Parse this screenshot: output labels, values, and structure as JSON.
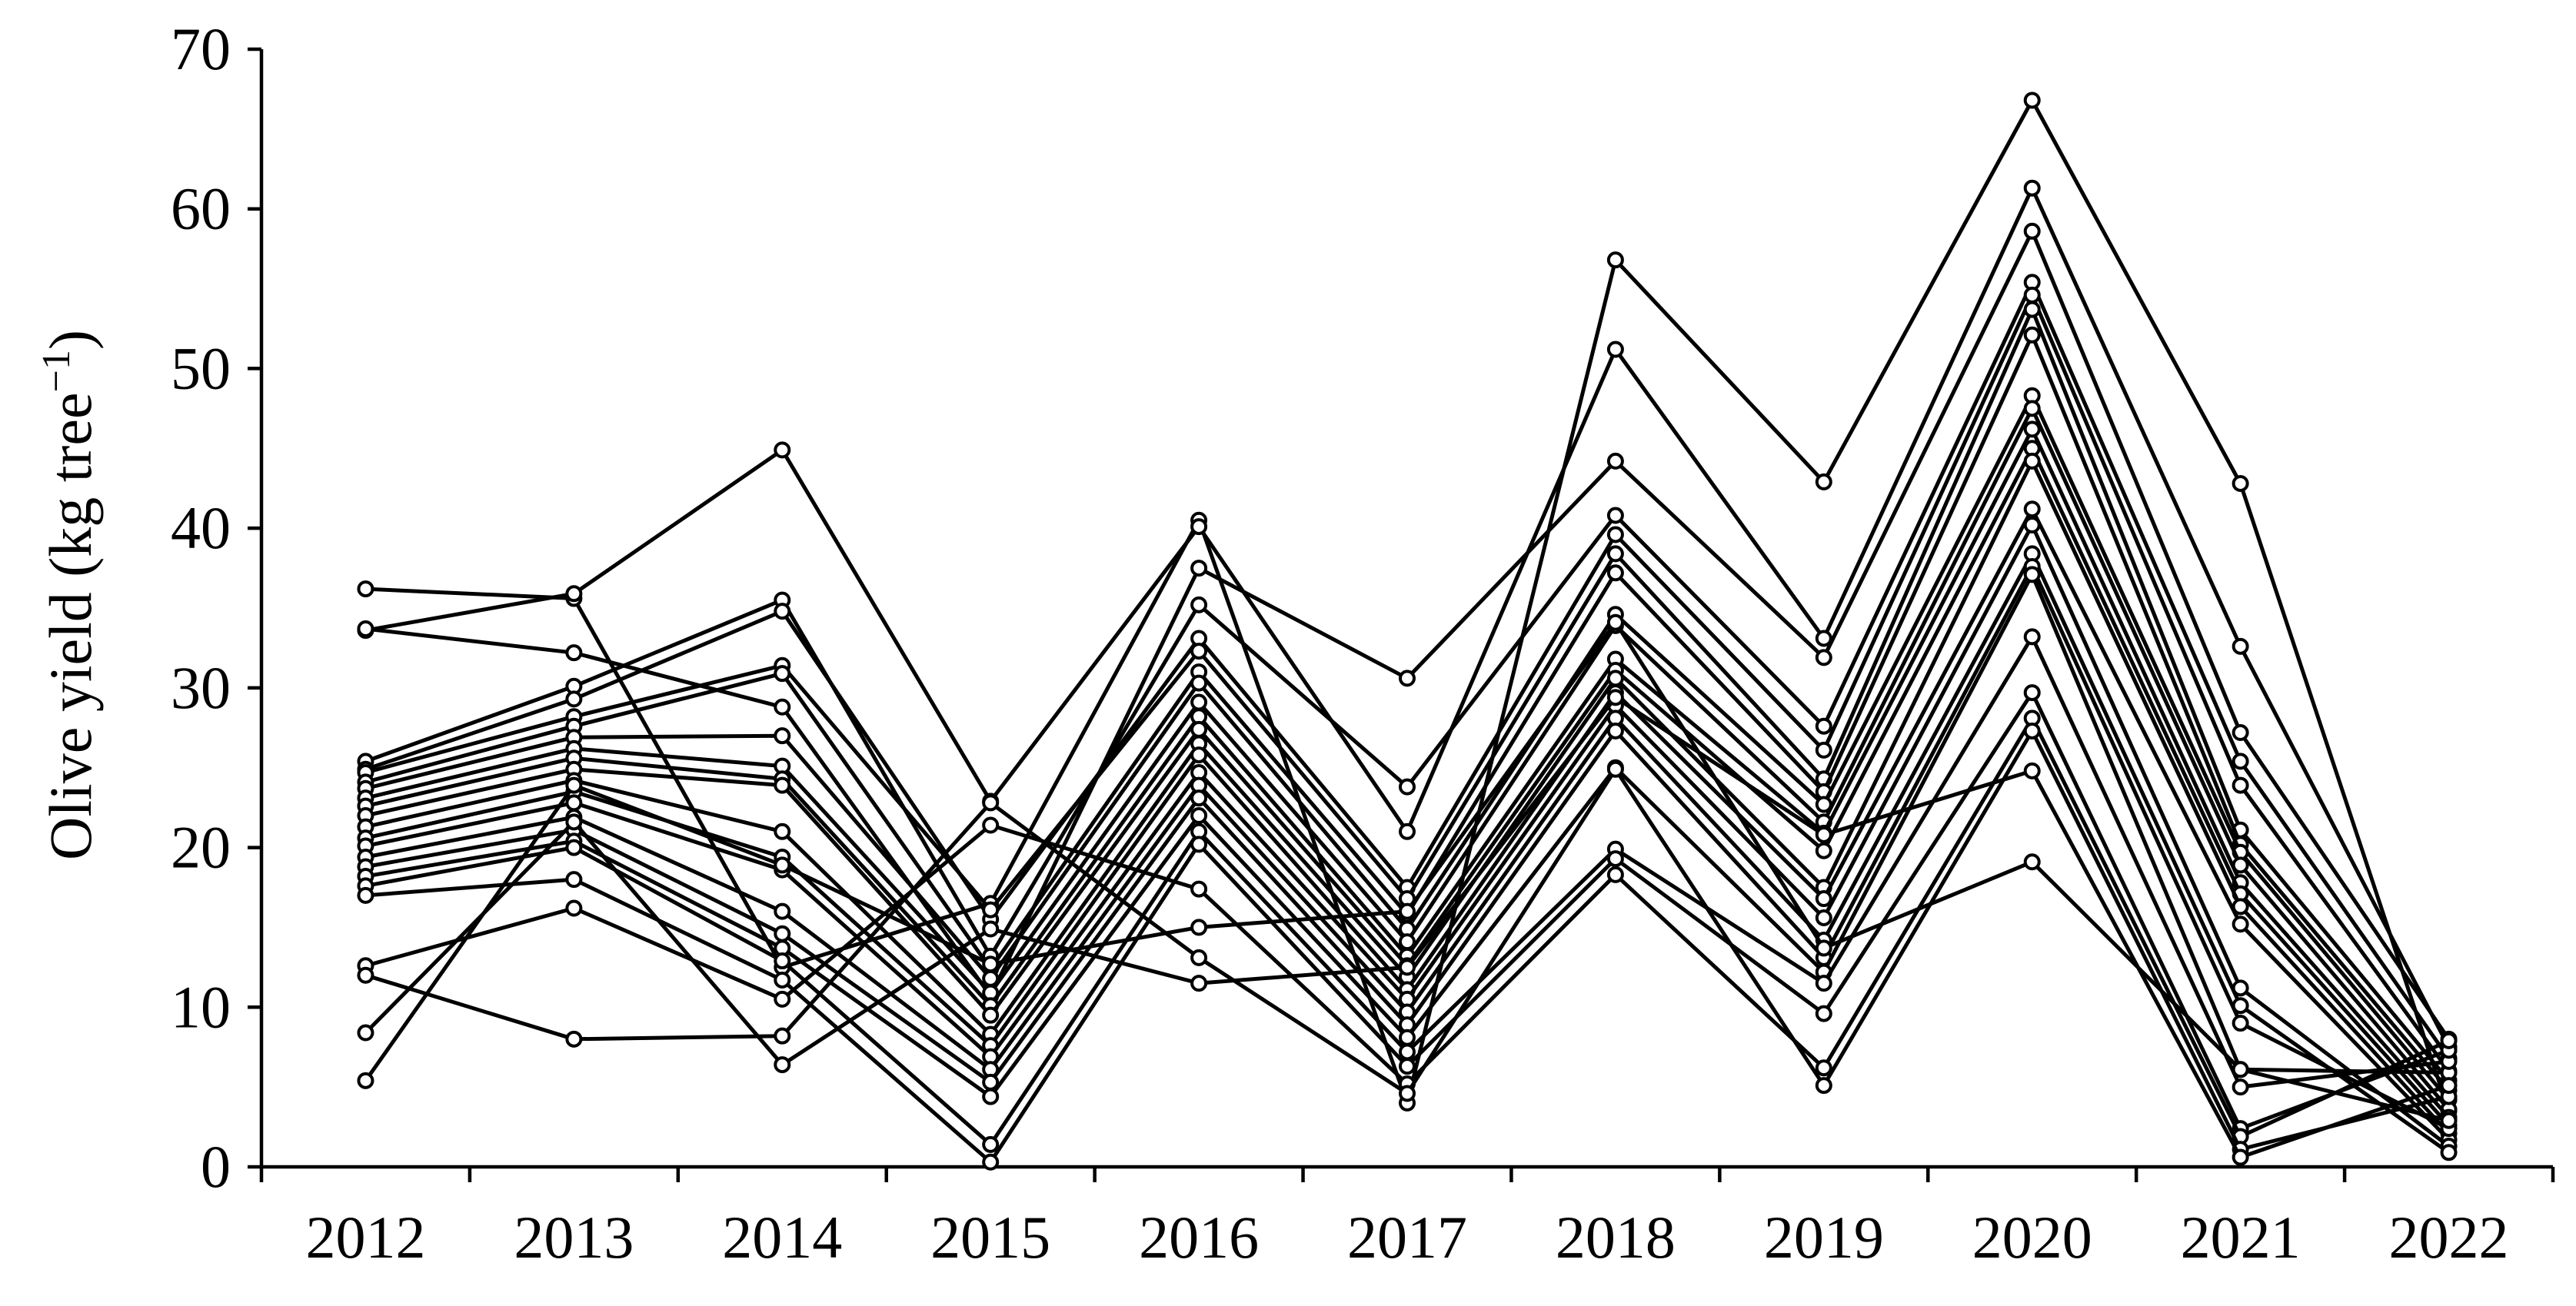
{
  "chart_data": {
    "type": "line",
    "title": "",
    "xlabel": "",
    "ylabel": "Olive yield (kg tree",
    "ylabel_superscript": "−1",
    "ylabel_suffix": ")",
    "ylim": [
      0,
      70
    ],
    "yticks": [
      "0",
      "10",
      "20",
      "30",
      "40",
      "50",
      "60",
      "70"
    ],
    "categories": [
      "2012",
      "2013",
      "2014",
      "2015",
      "2016",
      "2017",
      "2018",
      "2019",
      "2020",
      "2021",
      "2022"
    ],
    "grid": false,
    "legend": "none",
    "line_color": "#000000",
    "marker_fill": "#ffffff",
    "series": [
      {
        "values": [
          36.2,
          35.6,
          12.5,
          16.5,
          40.5,
          4.0,
          56.8,
          42.9,
          66.8,
          42.8,
          3.5
        ]
      },
      {
        "values": [
          33.6,
          35.9,
          44.9,
          22.9,
          40.1,
          21.0,
          51.2,
          33.1,
          61.3,
          32.6,
          7.5
        ]
      },
      {
        "values": [
          33.7,
          32.2,
          28.8,
          10.7,
          37.5,
          30.6,
          44.2,
          31.9,
          58.6,
          27.2,
          8.0
        ]
      },
      {
        "values": [
          25.4,
          30.1,
          35.5,
          13.2,
          35.2,
          23.8,
          40.8,
          27.6,
          55.4,
          25.4,
          6.8
        ]
      },
      {
        "values": [
          24.9,
          29.3,
          34.8,
          15.5,
          33.1,
          17.5,
          39.6,
          26.1,
          54.6,
          23.9,
          6.0
        ]
      },
      {
        "values": [
          24.7,
          28.2,
          31.4,
          16.1,
          32.3,
          16.8,
          38.4,
          24.3,
          53.7,
          21.1,
          5.4
        ]
      },
      {
        "values": [
          24.1,
          27.6,
          30.9,
          12.4,
          31.0,
          15.8,
          37.2,
          23.5,
          52.1,
          20.2,
          4.8
        ]
      },
      {
        "values": [
          23.7,
          26.9,
          27.0,
          11.8,
          30.3,
          14.9,
          34.6,
          22.7,
          48.3,
          19.7,
          4.2
        ]
      },
      {
        "values": [
          23.1,
          26.2,
          25.1,
          10.9,
          29.1,
          14.1,
          33.9,
          21.6,
          47.5,
          18.9,
          3.6
        ]
      },
      {
        "values": [
          22.6,
          25.6,
          24.3,
          10.1,
          28.2,
          13.2,
          31.8,
          20.9,
          46.2,
          17.8,
          3.1
        ]
      },
      {
        "values": [
          22.0,
          24.9,
          23.9,
          9.5,
          27.4,
          12.6,
          31.1,
          19.8,
          45.0,
          17.1,
          2.6
        ]
      },
      {
        "values": [
          21.3,
          24.2,
          21.0,
          8.3,
          26.5,
          11.9,
          30.6,
          17.5,
          44.2,
          16.3,
          2.1
        ]
      },
      {
        "values": [
          20.6,
          23.5,
          19.4,
          7.6,
          25.8,
          11.1,
          29.7,
          16.8,
          41.2,
          15.2,
          1.7
        ]
      },
      {
        "values": [
          20.1,
          22.8,
          18.6,
          6.9,
          24.7,
          10.5,
          28.9,
          15.6,
          40.2,
          11.2,
          1.3
        ]
      },
      {
        "values": [
          19.4,
          21.9,
          16.0,
          6.1,
          23.9,
          9.7,
          28.1,
          14.2,
          38.4,
          10.1,
          0.9
        ]
      },
      {
        "values": [
          18.8,
          21.1,
          14.6,
          5.3,
          23.1,
          8.9,
          27.3,
          13.1,
          37.6,
          9.0,
          2.4
        ]
      },
      {
        "values": [
          18.2,
          20.4,
          13.7,
          4.4,
          22.0,
          8.1,
          25.0,
          12.2,
          37.1,
          6.1,
          5.9
        ]
      },
      {
        "values": [
          17.6,
          20.0,
          12.9,
          1.4,
          21.0,
          7.2,
          19.9,
          11.5,
          33.2,
          5.0,
          6.6
        ]
      },
      {
        "values": [
          17.0,
          18.0,
          11.7,
          0.3,
          20.2,
          6.3,
          19.3,
          9.6,
          29.7,
          2.4,
          7.3
        ]
      },
      {
        "values": [
          12.6,
          16.2,
          10.5,
          21.4,
          17.4,
          5.2,
          18.3,
          6.2,
          28.1,
          1.9,
          7.9
        ]
      },
      {
        "values": [
          12.0,
          8.0,
          8.2,
          22.8,
          13.1,
          4.6,
          24.9,
          5.1,
          27.3,
          1.1,
          4.4
        ]
      },
      {
        "values": [
          8.4,
          21.6,
          6.4,
          14.9,
          11.5,
          12.5,
          29.4,
          20.8,
          24.8,
          0.6,
          5.1
        ]
      },
      {
        "values": [
          5.4,
          23.9,
          18.9,
          12.7,
          15.0,
          16.0,
          34.1,
          13.7,
          19.1,
          6.1,
          2.9
        ]
      }
    ]
  }
}
